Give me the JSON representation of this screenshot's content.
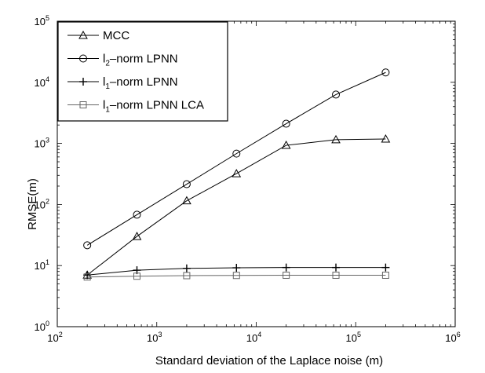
{
  "chart_data": {
    "type": "line",
    "xlabel": "Standard deviation of the Laplace noise (m)",
    "ylabel": "RMSE(m)",
    "xscale": "log",
    "yscale": "log",
    "xlim": [
      100,
      1000000
    ],
    "ylim": [
      1,
      100000
    ],
    "grid": false,
    "legend_position": "top-left",
    "x_ticks": [
      {
        "base": "10",
        "exp": "2",
        "value": 100
      },
      {
        "base": "10",
        "exp": "3",
        "value": 1000
      },
      {
        "base": "10",
        "exp": "4",
        "value": 10000
      },
      {
        "base": "10",
        "exp": "5",
        "value": 100000
      },
      {
        "base": "10",
        "exp": "6",
        "value": 1000000
      }
    ],
    "y_ticks": [
      {
        "base": "10",
        "exp": "0",
        "value": 1
      },
      {
        "base": "10",
        "exp": "1",
        "value": 10
      },
      {
        "base": "10",
        "exp": "2",
        "value": 100
      },
      {
        "base": "10",
        "exp": "3",
        "value": 1000
      },
      {
        "base": "10",
        "exp": "4",
        "value": 10000
      },
      {
        "base": "10",
        "exp": "5",
        "value": 100000
      }
    ],
    "x": [
      200,
      632,
      2000,
      6325,
      20000,
      63246,
      200000
    ],
    "series": [
      {
        "name": "MCC",
        "legend_main": "MCC",
        "legend_sub": "",
        "legend_rest": "",
        "marker": "triangle",
        "color": "#000000",
        "values": [
          7,
          30,
          115,
          320,
          930,
          1150,
          1180
        ]
      },
      {
        "name": "l2-norm LPNN",
        "legend_main": "l",
        "legend_sub": "2",
        "legend_rest": "–norm LPNN",
        "marker": "circle",
        "color": "#000000",
        "values": [
          21.5,
          68,
          215,
          680,
          2100,
          6300,
          14500
        ]
      },
      {
        "name": "l1-norm LPNN",
        "legend_main": "l",
        "legend_sub": "1",
        "legend_rest": "–norm LPNN",
        "marker": "plus",
        "color": "#000000",
        "values": [
          7,
          8.4,
          9,
          9.2,
          9.3,
          9.3,
          9.3
        ]
      },
      {
        "name": "l1-norm LPNN LCA",
        "legend_main": "l",
        "legend_sub": "1",
        "legend_rest": "–norm LPNN LCA",
        "marker": "square",
        "color": "#666666",
        "values": [
          6.5,
          6.7,
          6.85,
          6.9,
          6.95,
          6.95,
          6.95
        ]
      }
    ]
  }
}
